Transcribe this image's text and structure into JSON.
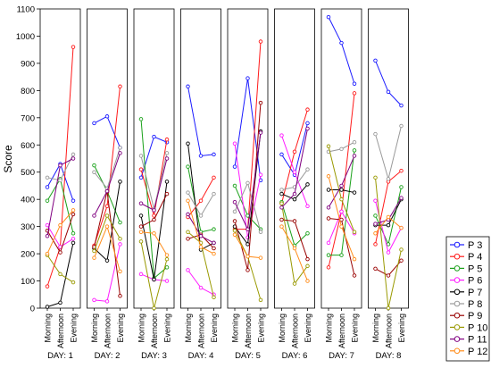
{
  "chart_data": {
    "type": "line",
    "ylabel": "Score",
    "ylim": [
      0,
      1100
    ],
    "yticks": [
      0,
      100,
      200,
      300,
      400,
      500,
      600,
      700,
      800,
      900,
      1000,
      1100
    ],
    "x": [
      "Morning",
      "Afternoon",
      "Evening"
    ],
    "grid": false,
    "legend_position": "bottom-right",
    "panels": [
      {
        "label": "DAY: 1",
        "series": [
          [
            445,
            530,
            395
          ],
          [
            80,
            225,
            960
          ],
          [
            395,
            475,
            275
          ],
          [
            305,
            225,
            255
          ],
          [
            5,
            20,
            240
          ],
          [
            480,
            470,
            565
          ],
          [
            285,
            205,
            345
          ],
          [
            195,
            125,
            95
          ],
          [
            265,
            525,
            550
          ],
          [
            200,
            305,
            360
          ]
        ]
      },
      {
        "label": "DAY: 2",
        "series": [
          [
            680,
            705,
            590
          ],
          [
            230,
            375,
            815
          ],
          [
            525,
            430,
            315
          ],
          [
            30,
            25,
            235
          ],
          [
            220,
            175,
            465
          ],
          [
            500,
            440,
            590
          ],
          [
            225,
            430,
            45
          ],
          [
            210,
            340,
            255
          ],
          [
            340,
            430,
            570
          ],
          [
            185,
            300,
            135
          ]
        ]
      },
      {
        "label": "DAY: 3",
        "series": [
          [
            480,
            630,
            610
          ],
          [
            510,
            340,
            620
          ],
          [
            695,
            110,
            150
          ],
          [
            125,
            105,
            100
          ],
          [
            340,
            105,
            465
          ],
          [
            560,
            365,
            570
          ],
          [
            300,
            325,
            420
          ],
          [
            245,
            0,
            180
          ],
          [
            385,
            360,
            550
          ],
          [
            280,
            275,
            195
          ]
        ]
      },
      {
        "label": "DAY: 4",
        "series": [
          [
            815,
            560,
            565
          ],
          [
            335,
            395,
            480
          ],
          [
            520,
            280,
            290
          ],
          [
            140,
            75,
            50
          ],
          [
            605,
            215,
            240
          ],
          [
            425,
            340,
            420
          ],
          [
            255,
            270,
            220
          ],
          [
            280,
            240,
            40
          ],
          [
            345,
            265,
            240
          ],
          [
            395,
            225,
            200
          ]
        ]
      },
      {
        "label": "DAY: 5",
        "series": [
          [
            520,
            845,
            470
          ],
          [
            290,
            290,
            980
          ],
          [
            450,
            340,
            290
          ],
          [
            605,
            260,
            490
          ],
          [
            300,
            235,
            650
          ],
          [
            355,
            460,
            280
          ],
          [
            320,
            140,
            755
          ],
          [
            285,
            190,
            30
          ],
          [
            390,
            290,
            645
          ],
          [
            270,
            190,
            185
          ]
        ]
      },
      {
        "label": "DAY: 6",
        "series": [
          [
            565,
            490,
            680
          ],
          [
            385,
            575,
            730
          ],
          [
            390,
            230,
            275
          ],
          [
            635,
            500,
            375
          ],
          [
            420,
            400,
            455
          ],
          [
            435,
            445,
            510
          ],
          [
            325,
            320,
            180
          ],
          [
            385,
            90,
            155
          ],
          [
            370,
            420,
            660
          ],
          [
            300,
            220,
            100
          ]
        ]
      },
      {
        "label": "DAY: 7",
        "series": [
          [
            1070,
            975,
            825
          ],
          [
            150,
            355,
            790
          ],
          [
            195,
            195,
            580
          ],
          [
            240,
            355,
            275
          ],
          [
            435,
            435,
            425
          ],
          [
            575,
            585,
            610
          ],
          [
            330,
            325,
            120
          ],
          [
            595,
            400,
            280
          ],
          [
            370,
            450,
            560
          ],
          [
            485,
            300,
            180
          ]
        ]
      },
      {
        "label": "DAY: 8",
        "series": [
          [
            910,
            795,
            745
          ],
          [
            235,
            465,
            505
          ],
          [
            340,
            235,
            445
          ],
          [
            395,
            205,
            295
          ],
          [
            305,
            305,
            400
          ],
          [
            640,
            475,
            670
          ],
          [
            145,
            120,
            175
          ],
          [
            480,
            0,
            215
          ],
          [
            310,
            325,
            405
          ],
          [
            275,
            335,
            295
          ]
        ]
      }
    ],
    "legend": [
      {
        "name": "P 3",
        "color": "#1a1aff"
      },
      {
        "name": "P 4",
        "color": "#ff1a1a"
      },
      {
        "name": "P 5",
        "color": "#1aa11a"
      },
      {
        "name": "P 6",
        "color": "#ff1aff"
      },
      {
        "name": "P 7",
        "color": "#000000"
      },
      {
        "name": "P 8",
        "color": "#999999"
      },
      {
        "name": "P 9",
        "color": "#990000"
      },
      {
        "name": "P 10",
        "color": "#999900"
      },
      {
        "name": "P 11",
        "color": "#800080"
      },
      {
        "name": "P 12",
        "color": "#ff8c1a"
      }
    ]
  }
}
